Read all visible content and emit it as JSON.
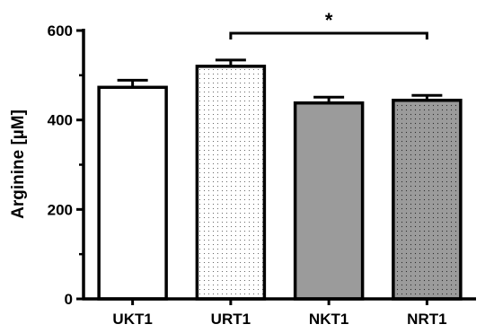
{
  "chart_data": {
    "type": "bar",
    "title": "",
    "xlabel": "",
    "ylabel": "Arginine [µM]",
    "ylim": [
      0,
      600
    ],
    "yticks": [
      0,
      200,
      400,
      600
    ],
    "categories": [
      "UKT1",
      "URT1",
      "NKT1",
      "NRT1"
    ],
    "values": [
      473,
      520,
      438,
      444
    ],
    "errors": [
      16,
      14,
      13,
      11
    ],
    "fills": [
      "white",
      "light-dotted",
      "gray",
      "gray-dotted"
    ],
    "colors": {
      "white": "#ffffff",
      "light_dotted_bg": "#ffffff",
      "gray": "#9b9b9b",
      "gray_dotted_bg": "#9b9b9b",
      "dot": "#333333",
      "stroke": "#000000"
    },
    "grid": false,
    "legend": "none",
    "annotations": [
      {
        "type": "significance-bracket",
        "from": "URT1",
        "to": "NRT1",
        "label": "*"
      }
    ]
  }
}
